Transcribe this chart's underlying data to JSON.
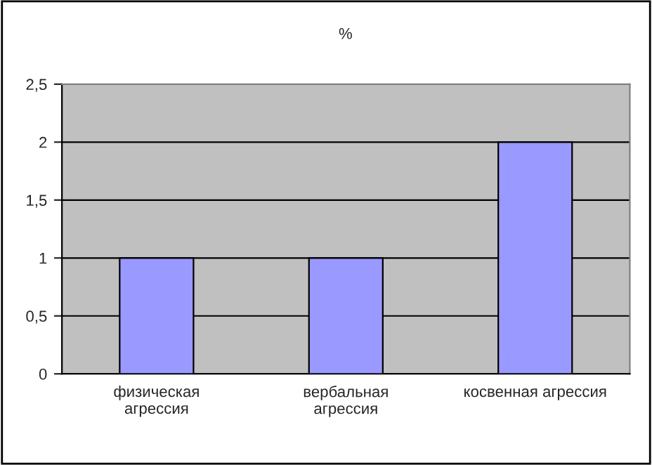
{
  "chart_data": {
    "type": "bar",
    "title": "%",
    "categories": [
      "физическая\nагрессия",
      "вербальная\nагрессия",
      "косвенная агрессия"
    ],
    "values": [
      1,
      1,
      2
    ],
    "color": "#9999ff",
    "ylim": [
      0,
      2.5
    ],
    "yticks": [
      0,
      {
        "value": 0.5,
        "label": "0,5"
      },
      1,
      {
        "value": 1.5,
        "label": "1,5"
      },
      2,
      {
        "value": 2.5,
        "label": "2,5"
      }
    ],
    "grid": "y",
    "legend": false
  }
}
